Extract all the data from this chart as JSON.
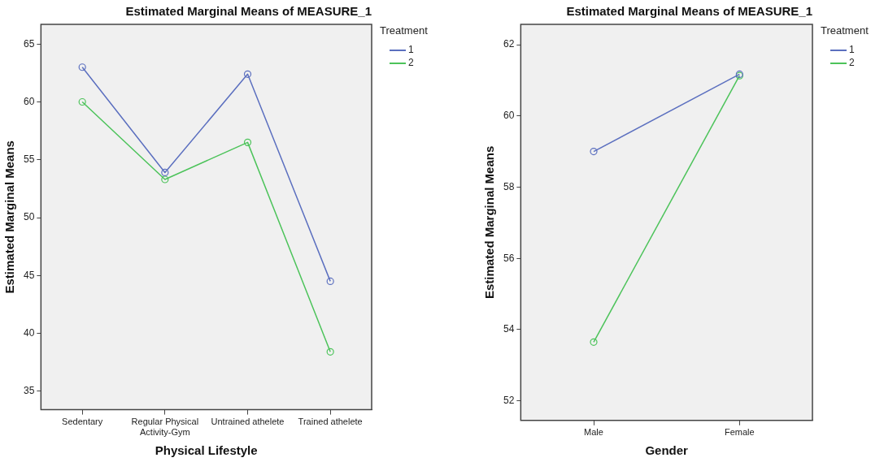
{
  "chart_data": [
    {
      "type": "line",
      "title": "Estimated Marginal Means of MEASURE_1",
      "xlabel": "Physical Lifestyle",
      "ylabel": "Estimated Marginal Means",
      "legend_title": "Treatment",
      "categories": [
        "Sedentary",
        "Regular Physical Activity-Gym",
        "Untrained athelete",
        "Trained athelete"
      ],
      "series": [
        {
          "name": "1",
          "color": "#5b6fbf",
          "values": [
            63.0,
            53.9,
            62.4,
            44.5
          ]
        },
        {
          "name": "2",
          "color": "#4cc35a",
          "values": [
            60.0,
            53.3,
            56.5,
            38.4
          ]
        }
      ],
      "ylim": [
        33.4,
        66.7
      ],
      "yticks": [
        35,
        40,
        45,
        50,
        55,
        60,
        65
      ],
      "grid": false,
      "legend": "top right",
      "marker": "circle",
      "line_style": "solid"
    },
    {
      "type": "line",
      "title": "Estimated Marginal Means of MEASURE_1",
      "xlabel": "Gender",
      "ylabel": "Estimated Marginal Means",
      "legend_title": "Treatment",
      "categories": [
        "Male",
        "Female"
      ],
      "series": [
        {
          "name": "1",
          "color": "#5b6fbf",
          "values": [
            59.0,
            61.17
          ]
        },
        {
          "name": "2",
          "color": "#4cc35a",
          "values": [
            53.65,
            61.13
          ]
        }
      ],
      "ylim": [
        51.45,
        62.57
      ],
      "yticks": [
        52,
        54,
        56,
        58,
        60,
        62
      ],
      "grid": false,
      "legend": "top right",
      "marker": "circle",
      "line_style": "solid"
    }
  ]
}
